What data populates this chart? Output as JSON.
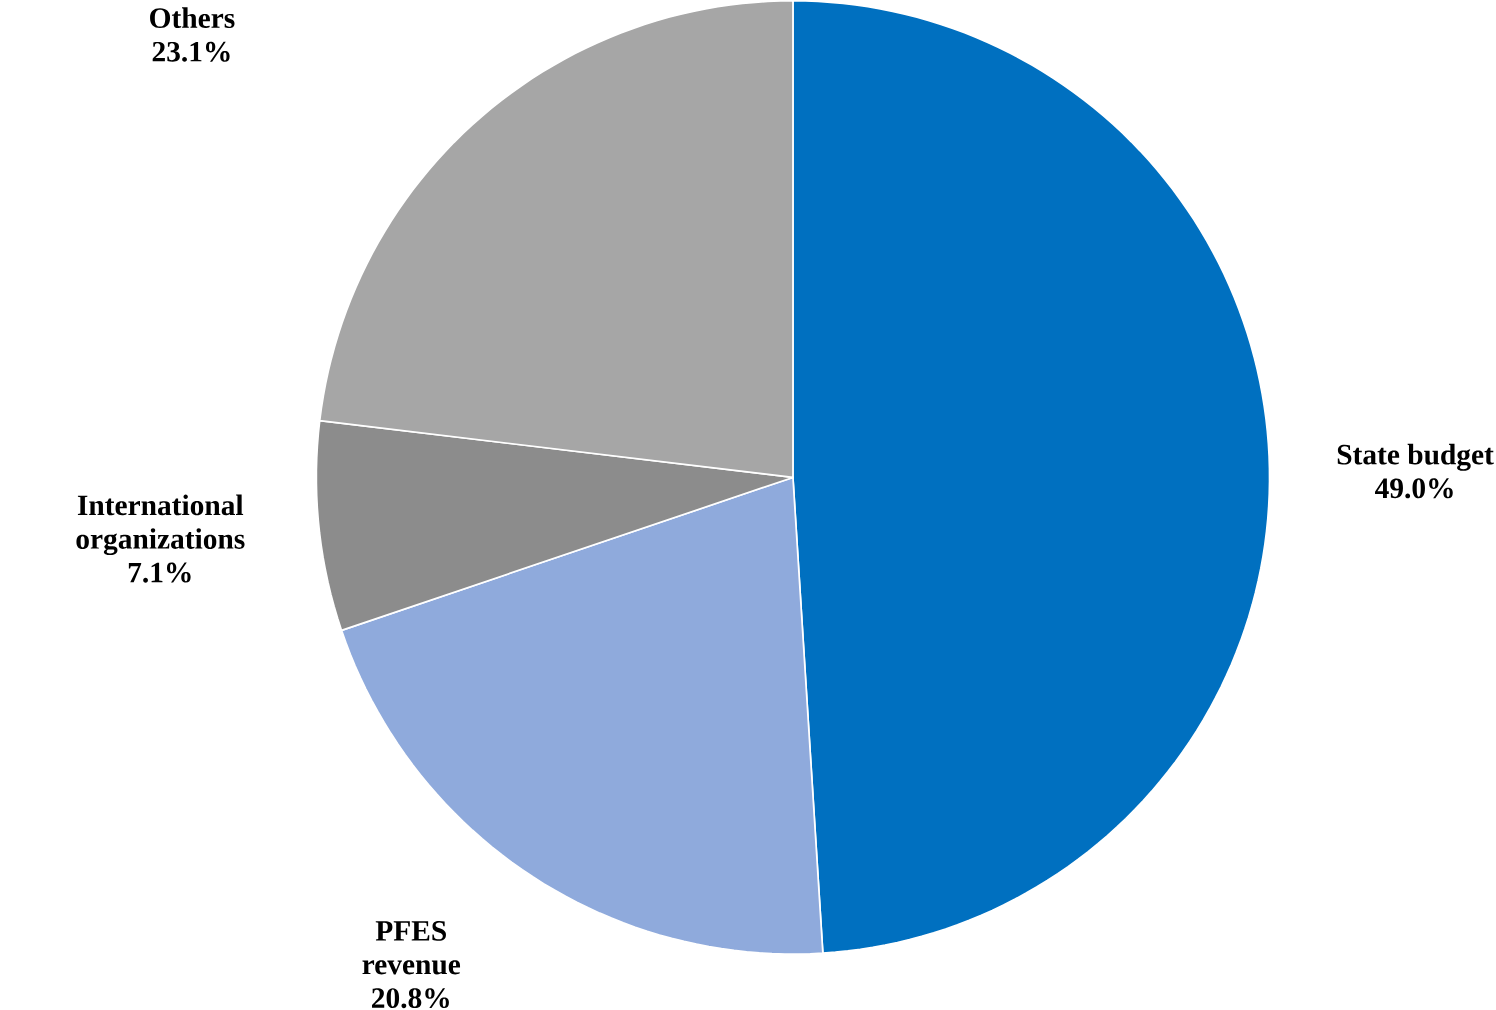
{
  "chart_data": {
    "type": "pie",
    "categories": [
      "State budget",
      "PFES revenue",
      "International organizations",
      "Others"
    ],
    "values": [
      49.0,
      20.8,
      7.1,
      23.1
    ],
    "colors": [
      "#0070c0",
      "#8faadc",
      "#8c8c8c",
      "#a6a6a6"
    ],
    "value_labels": [
      "49.0%",
      "20.8%",
      "7.1%",
      "23.1%"
    ]
  }
}
